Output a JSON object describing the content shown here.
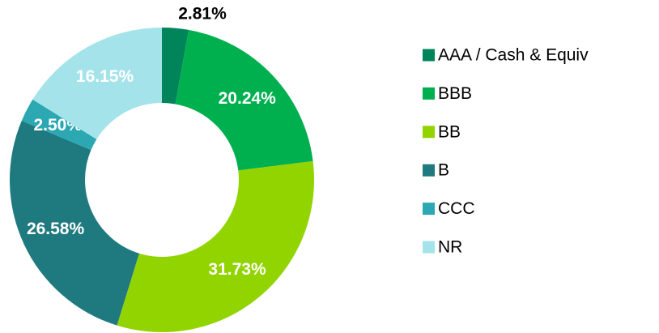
{
  "chart_data": {
    "type": "donut",
    "categories": [
      "AAA / Cash & Equiv",
      "BBB",
      "BB",
      "B",
      "CCC",
      "NR"
    ],
    "values": [
      2.81,
      20.24,
      31.73,
      26.58,
      2.5,
      16.15
    ],
    "value_labels": [
      "2.81%",
      "20.24%",
      "31.73%",
      "26.58%",
      "2.50%",
      "16.15%"
    ],
    "colors": [
      "#00845a",
      "#00b04f",
      "#92d400",
      "#1f7a80",
      "#2ba8b2",
      "#a5e3ea"
    ],
    "legend": "right"
  }
}
